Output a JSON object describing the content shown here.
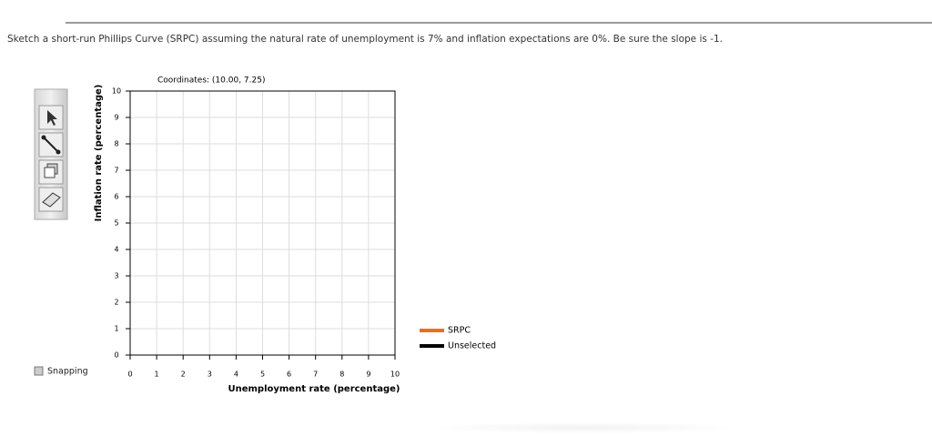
{
  "question": "Sketch a short-run Phillips Curve (SRPC) assuming the natural rate of unemployment is 7% and inflation expectations are 0%. Be sure the slope is -1.",
  "graph": {
    "coordinates": "Coordinates: (10.00, 7.25)",
    "x_label": "Unemployment rate (percentage)",
    "y_label": "Inflation rate (percentage)",
    "xlim": [
      0,
      10
    ],
    "ylim": [
      0,
      10
    ],
    "xticks": [
      0,
      1,
      2,
      3,
      4,
      5,
      6,
      7,
      8,
      9,
      10
    ],
    "yticks": [
      0,
      1,
      2,
      3,
      4,
      5,
      6,
      7,
      8,
      9,
      10
    ],
    "grid": true,
    "legend": [
      {
        "name": "SRPC",
        "color": "#f26b1d"
      },
      {
        "name": "Unselected",
        "color": "#000000"
      }
    ]
  },
  "snapping": "Snapping"
}
